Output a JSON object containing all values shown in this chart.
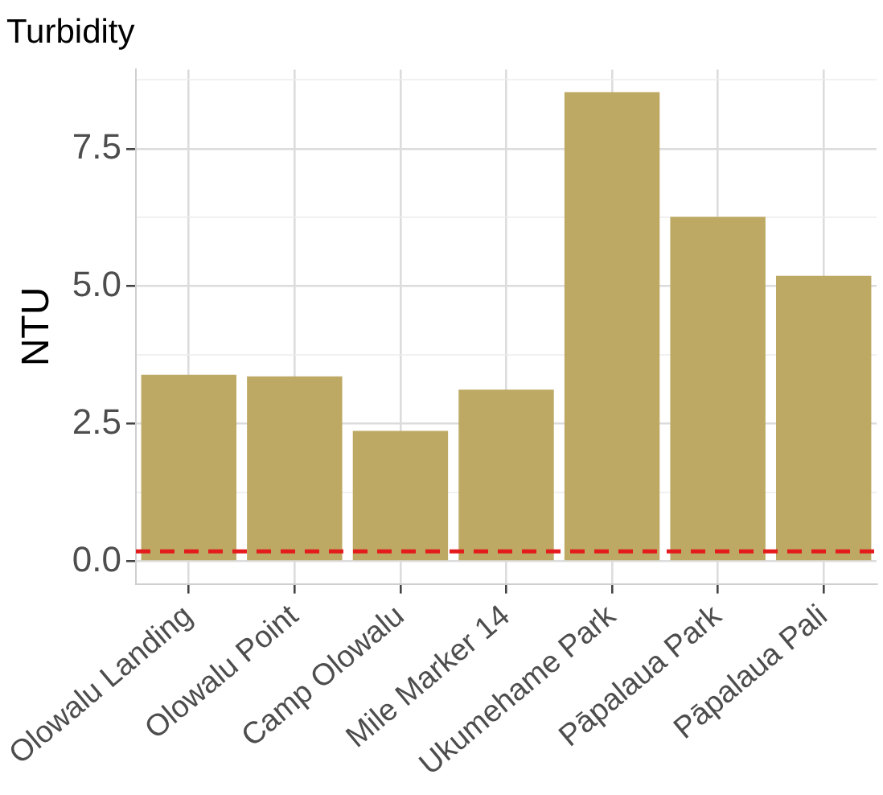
{
  "chart_data": {
    "type": "bar",
    "title": "Turbidity",
    "ylabel": "NTU",
    "categories": [
      "Olowalu Landing",
      "Olowalu Point",
      "Camp Olowalu",
      "Mile Marker 14",
      "Ukumehame Park",
      "Pāpalaua Park",
      "Pāpalaua Pali"
    ],
    "values": [
      3.39,
      3.36,
      2.37,
      3.12,
      8.53,
      6.26,
      5.19
    ],
    "color": "#bda963",
    "ylim": [
      -0.41,
      8.94
    ],
    "yticks": [
      {
        "value": 0,
        "label": "0.0"
      },
      {
        "value": 1.25,
        "label": null
      },
      {
        "value": 2.5,
        "label": "2.5"
      },
      {
        "value": 3.75,
        "label": null
      },
      {
        "value": 5,
        "label": "5.0"
      },
      {
        "value": 6.25,
        "label": null
      },
      {
        "value": 7.5,
        "label": "7.5"
      },
      {
        "value": 8.75,
        "label": null
      }
    ],
    "grid": true,
    "legend": false,
    "ref_lines": [
      {
        "axis": "y",
        "value": 0.18,
        "color": "#e41a1c",
        "line_style": "dashed"
      }
    ]
  }
}
